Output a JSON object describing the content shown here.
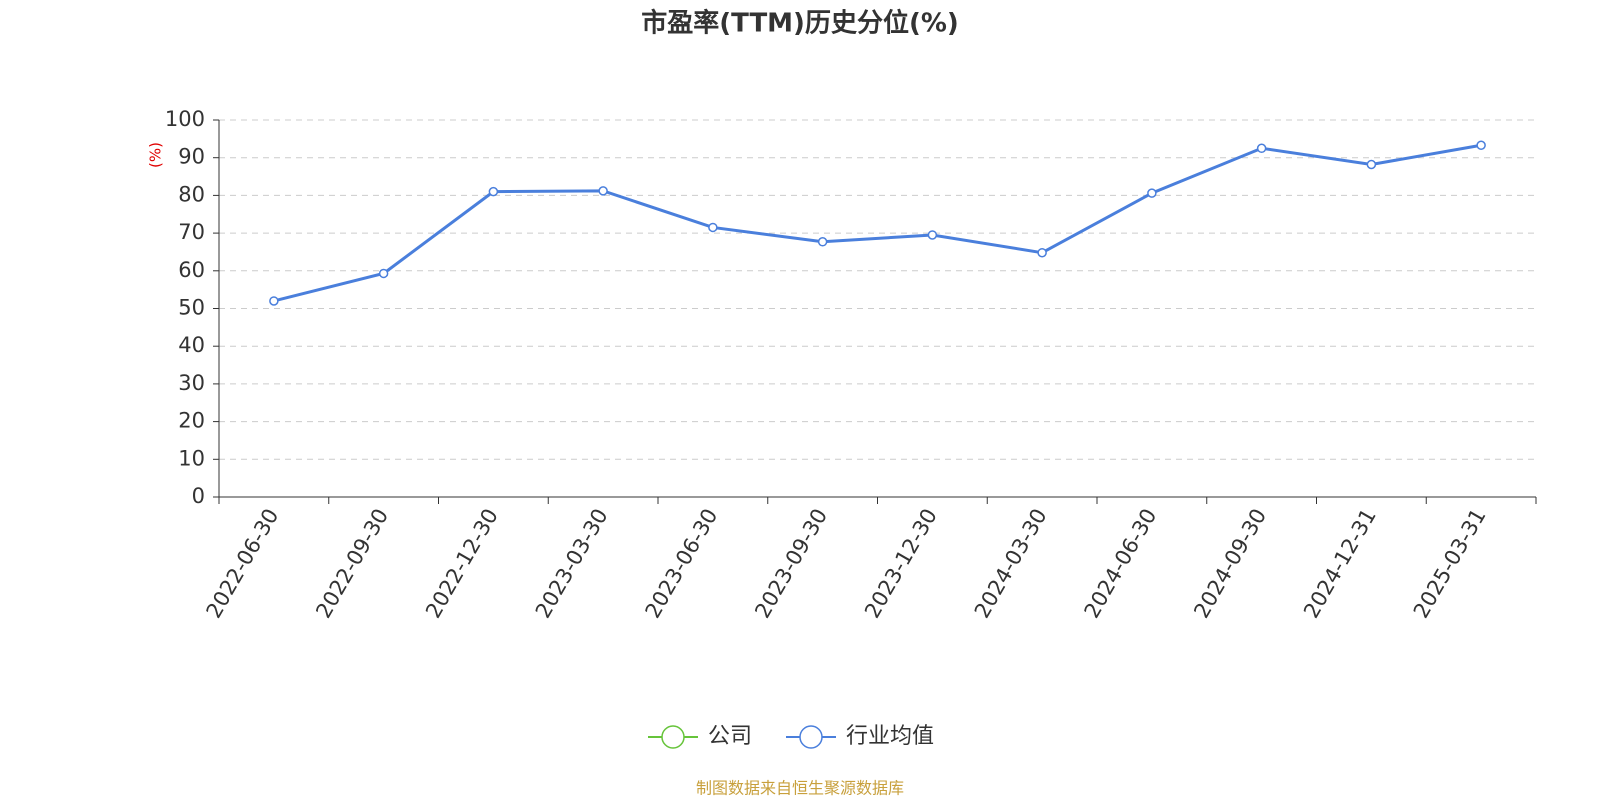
{
  "chart_data": {
    "type": "line",
    "title": "市盈率(TTM)历史分位(%)",
    "y_label": "(%)",
    "categories": [
      "2022-06-30",
      "2022-09-30",
      "2022-12-30",
      "2023-03-30",
      "2023-06-30",
      "2023-09-30",
      "2023-12-30",
      "2024-03-30",
      "2024-06-30",
      "2024-09-30",
      "2024-12-31",
      "2025-03-31"
    ],
    "series": [
      {
        "name": "公司",
        "color": "#66c43a",
        "values": [
          null,
          null,
          null,
          null,
          null,
          null,
          null,
          null,
          null,
          null,
          null,
          null
        ]
      },
      {
        "name": "行业均值",
        "color": "#4a7fdc",
        "values": [
          52,
          59.3,
          81,
          81.2,
          71.5,
          67.7,
          69.5,
          64.8,
          80.6,
          92.5,
          88.2,
          93.3
        ]
      }
    ],
    "ylim": [
      0,
      100
    ],
    "yticks": [
      0,
      10,
      20,
      30,
      40,
      50,
      60,
      70,
      80,
      90,
      100
    ],
    "grid": true,
    "legend": "bottom",
    "source": "制图数据来自恒生聚源数据库"
  }
}
